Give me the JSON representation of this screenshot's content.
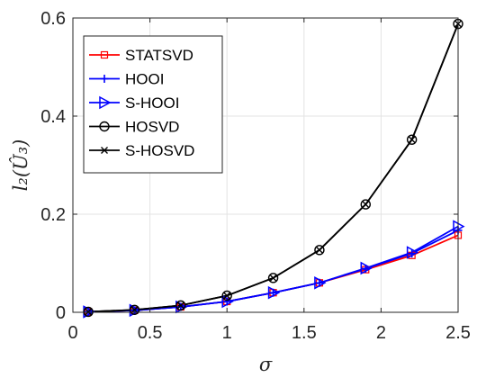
{
  "chart_data": {
    "type": "line",
    "title": "",
    "xlabel": "σ",
    "ylabel": "l₂(Û₃)",
    "xlim": [
      0,
      2.5
    ],
    "ylim": [
      0,
      0.6
    ],
    "xticks": [
      0,
      0.5,
      1,
      1.5,
      2,
      2.5
    ],
    "xtick_labels": [
      "0",
      "0.5",
      "1",
      "1.5",
      "2",
      "2.5"
    ],
    "yticks": [
      0,
      0.2,
      0.4,
      0.6
    ],
    "ytick_labels": [
      "0",
      "0.2",
      "0.4",
      "0.6"
    ],
    "grid": true,
    "legend_position": "top-left",
    "x": [
      0.1,
      0.4,
      0.7,
      1.0,
      1.3,
      1.6,
      1.9,
      2.2,
      2.5
    ],
    "series": [
      {
        "name": "STATSVD",
        "color": "#ff0000",
        "marker": "square",
        "values": [
          0.001,
          0.004,
          0.011,
          0.022,
          0.04,
          0.06,
          0.087,
          0.116,
          0.157
        ]
      },
      {
        "name": "HOOI",
        "color": "#0000ff",
        "marker": "plus",
        "values": [
          0.001,
          0.004,
          0.011,
          0.022,
          0.04,
          0.06,
          0.089,
          0.12,
          0.167
        ]
      },
      {
        "name": "S-HOOI",
        "color": "#0000ff",
        "marker": "triangle-right",
        "values": [
          0.001,
          0.004,
          0.011,
          0.022,
          0.04,
          0.06,
          0.09,
          0.122,
          0.175
        ]
      },
      {
        "name": "HOSVD",
        "color": "#000000",
        "marker": "circle",
        "values": [
          0.001,
          0.005,
          0.014,
          0.034,
          0.07,
          0.127,
          0.22,
          0.352,
          0.588
        ]
      },
      {
        "name": "S-HOSVD",
        "color": "#000000",
        "marker": "x",
        "values": [
          0.001,
          0.005,
          0.014,
          0.034,
          0.07,
          0.127,
          0.22,
          0.352,
          0.588
        ]
      }
    ]
  }
}
